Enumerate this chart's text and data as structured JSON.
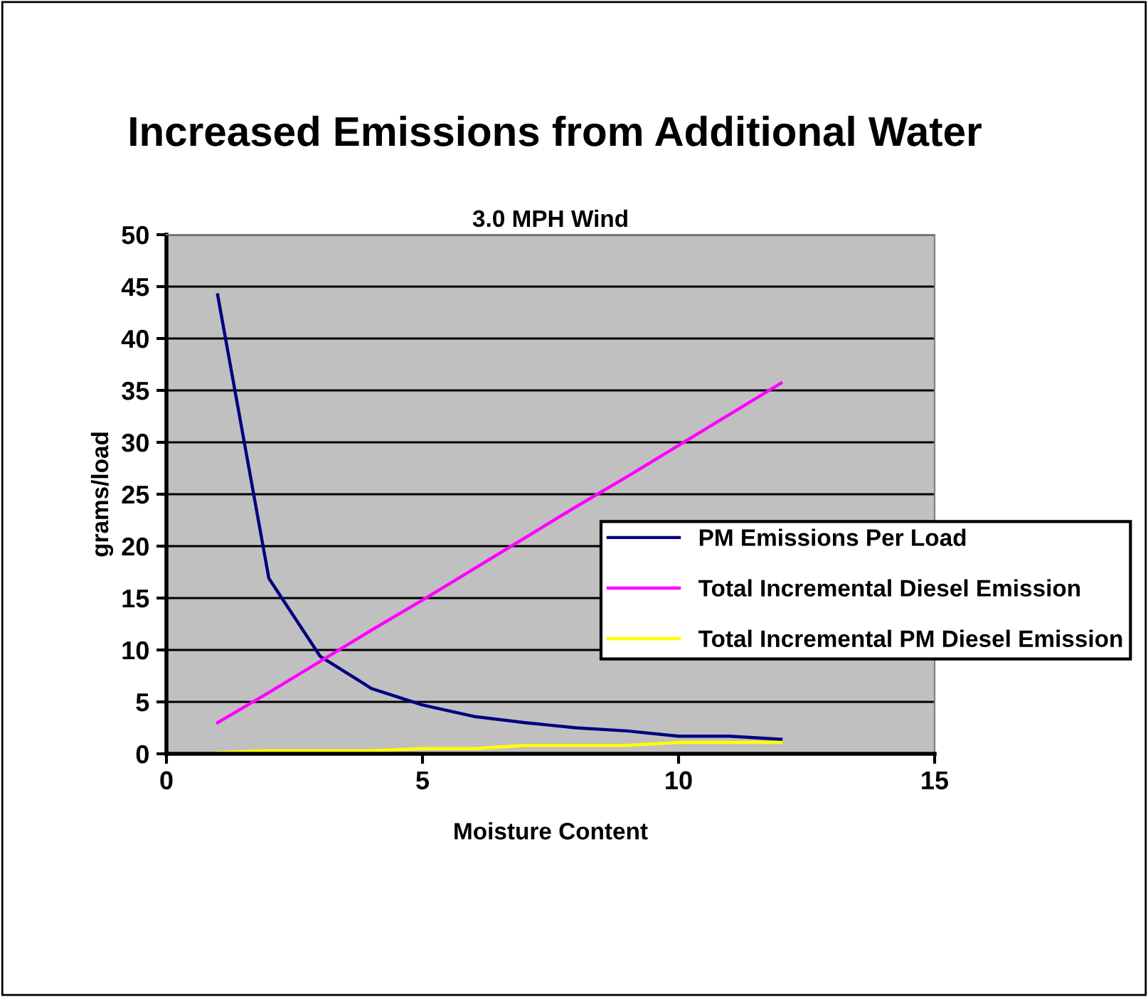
{
  "chart_data": {
    "type": "line",
    "title": "Increased Emissions from Additional Water",
    "subtitle": "3.0 MPH Wind",
    "xlabel": "Moisture Content",
    "ylabel": "grams/load",
    "x": [
      1,
      2,
      3,
      4,
      5,
      6,
      7,
      8,
      9,
      10,
      11,
      12
    ],
    "series": [
      {
        "name": "PM Emissions Per Load",
        "color": "#000080",
        "values": [
          44.2,
          16.9,
          9.4,
          6.3,
          4.7,
          3.6,
          3.0,
          2.5,
          2.2,
          1.7,
          1.7,
          1.4
        ]
      },
      {
        "name": "Total Incremental Diesel Emission",
        "color": "#ff00ff",
        "values": [
          3.0,
          5.9,
          8.9,
          11.9,
          14.8,
          17.8,
          20.8,
          23.8,
          26.7,
          29.7,
          32.7,
          35.7
        ]
      },
      {
        "name": "Total Incremental PM Diesel Emission",
        "color": "#ffff00",
        "values": [
          0.1,
          0.3,
          0.3,
          0.3,
          0.5,
          0.5,
          0.8,
          0.8,
          0.8,
          1.1,
          1.1,
          1.1
        ]
      }
    ],
    "xlim": [
      0,
      15
    ],
    "xticks": [
      0,
      5,
      10,
      15
    ],
    "ylim": [
      0,
      50
    ],
    "yticks": [
      0,
      5,
      10,
      15,
      20,
      25,
      30,
      35,
      40,
      45,
      50
    ],
    "grid": "y",
    "legend": "right",
    "marker": "none",
    "line_style": "solid"
  }
}
